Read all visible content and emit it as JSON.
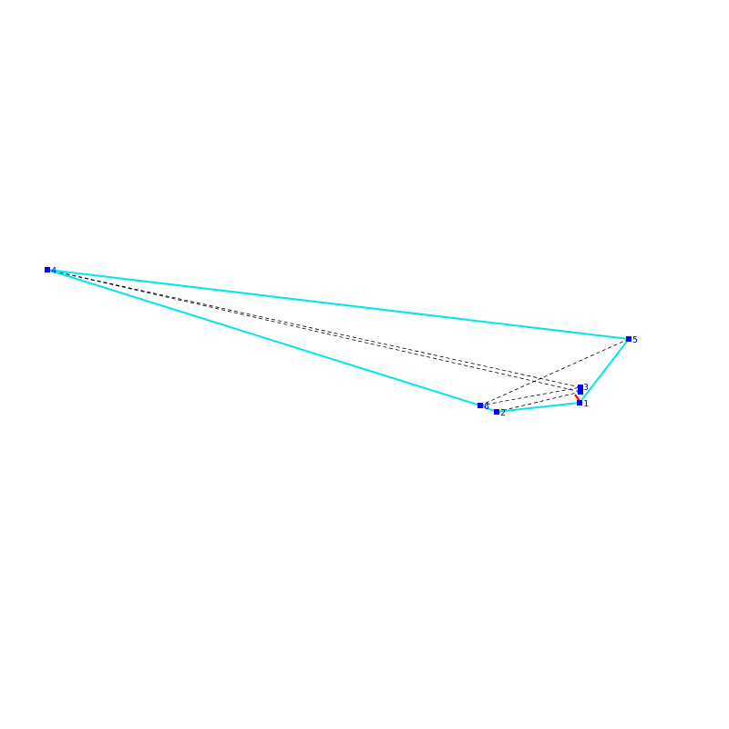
{
  "nodes": [
    {
      "label": "1"
    },
    {
      "label": "2"
    },
    {
      "label": "3"
    },
    {
      "label": "4"
    },
    {
      "label": "5"
    },
    {
      "label": "6"
    }
  ]
}
